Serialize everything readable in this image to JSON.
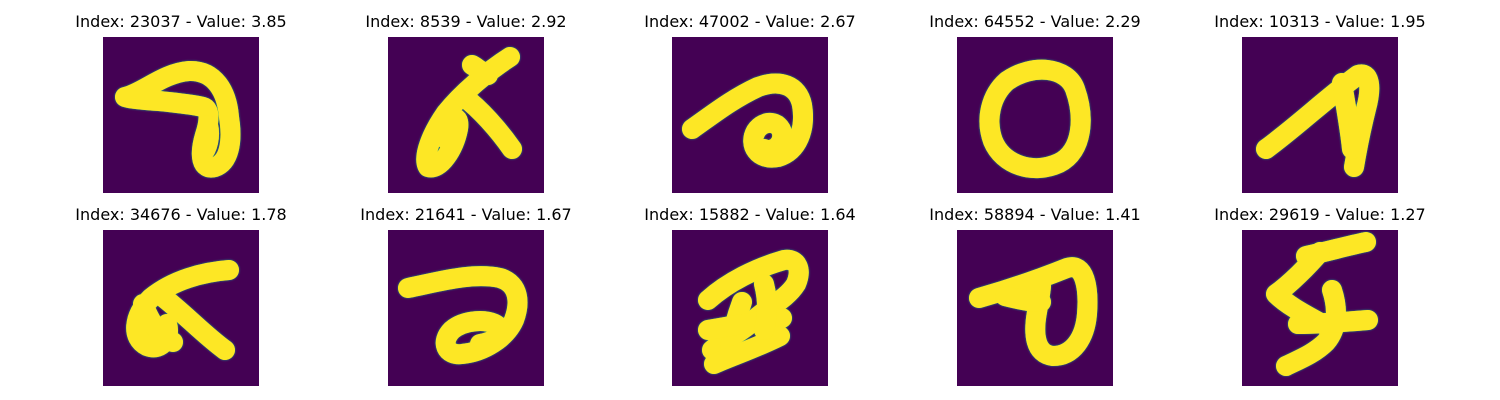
{
  "colors": {
    "background": "#440154",
    "stroke_edge": "#21918c",
    "stroke_mid": "#5ec962",
    "stroke_core": "#fde725"
  },
  "panels": [
    {
      "caption": "Index: 23037 - Value: 3.85",
      "depicts": "handwritten glyph resembling a looped a"
    },
    {
      "caption": "Index: 8539 - Value: 2.92",
      "depicts": "handwritten glyph resembling a looped K"
    },
    {
      "caption": "Index: 47002 - Value: 2.67",
      "depicts": "handwritten glyph resembling a looped a"
    },
    {
      "caption": "Index: 64552 - Value: 2.29",
      "depicts": "handwritten thick zero"
    },
    {
      "caption": "Index: 10313 - Value: 1.95",
      "depicts": "handwritten glyph resembling a thick A"
    },
    {
      "caption": "Index: 34676 - Value: 1.78",
      "depicts": "handwritten glyph resembling a looped K"
    },
    {
      "caption": "Index: 21641 - Value: 1.67",
      "depicts": "handwritten glyph resembling a sideways a"
    },
    {
      "caption": "Index: 15882 - Value: 1.64",
      "depicts": "handwritten blotchy glyph"
    },
    {
      "caption": "Index: 58894 - Value: 1.41",
      "depicts": "handwritten glyph resembling a looped a"
    },
    {
      "caption": "Index: 29619 - Value: 1.27",
      "depicts": "handwritten glyph resembling a five"
    }
  ]
}
